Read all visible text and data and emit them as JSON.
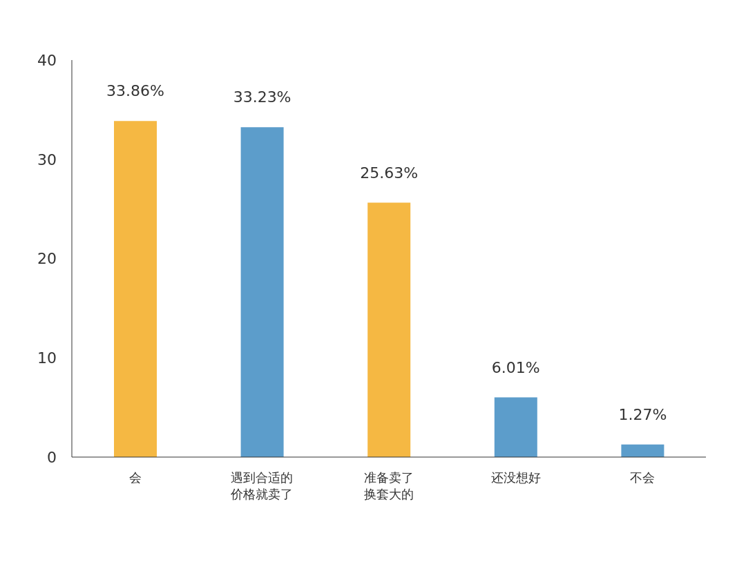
{
  "chart_data": {
    "type": "bar",
    "categories": [
      "会",
      "遇到合适的价格就卖了",
      "准备卖了换套大的",
      "还没想好",
      "不会"
    ],
    "values": [
      33.86,
      33.23,
      25.63,
      6.01,
      1.27
    ],
    "colors": [
      "#f5b843",
      "#5c9dcb",
      "#f5b843",
      "#5c9dcb",
      "#5c9dcb"
    ],
    "value_labels": [
      "33.86%",
      "33.23%",
      "25.63%",
      "6.01%",
      "1.27%"
    ],
    "ylim": [
      0,
      40
    ],
    "yticks": [
      0,
      10,
      20,
      30,
      40
    ],
    "grid": false,
    "legend": false
  }
}
